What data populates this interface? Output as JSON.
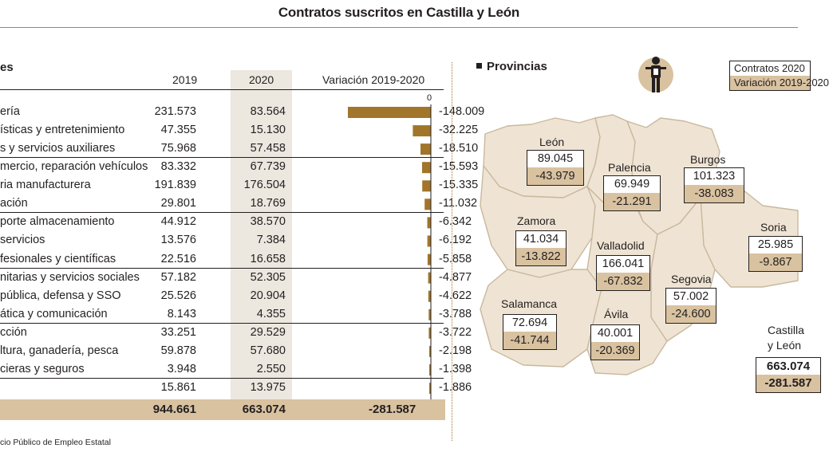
{
  "title": "Contratos suscritos en Castilla y León",
  "left_heading": "es",
  "column_headers": {
    "y2019": "2019",
    "y2020": "2020",
    "variation": "Variación 2019-2020"
  },
  "zero_label": "0",
  "chart_data": {
    "type": "bar",
    "orientation": "horizontal",
    "title": "Variación 2019-2020",
    "categories": [
      "ería",
      "ísticas y entretenimiento",
      "s y servicios auxiliares",
      "mercio, reparación vehículos",
      "ria manufacturera",
      "ación",
      "porte  almacenamiento",
      "servicios",
      "fesionales y científicas",
      "nitarias y servicios sociales",
      "pública, defensa y SSO",
      "ática y comunicación",
      "cción",
      "ltura, ganadería, pesca",
      "cieras y seguros",
      ""
    ],
    "series": [
      {
        "name": "2019",
        "values": [
          231.573,
          47.355,
          75.968,
          83.332,
          191.839,
          29.801,
          44.912,
          13.576,
          22.516,
          57.182,
          25.526,
          8.143,
          33.251,
          59.878,
          3.948,
          15.861
        ]
      },
      {
        "name": "2020",
        "values": [
          83.564,
          15.13,
          57.458,
          67.739,
          176.504,
          18.769,
          38.57,
          7.384,
          16.658,
          52.305,
          20.904,
          4.355,
          29.529,
          57.68,
          2.55,
          13.975
        ]
      },
      {
        "name": "Variación 2019-2020",
        "values": [
          -148009,
          -32225,
          -18510,
          -15593,
          -15335,
          -11032,
          -6342,
          -6192,
          -5858,
          -4877,
          -4622,
          -3788,
          -3722,
          -2198,
          -1398,
          -1886
        ]
      }
    ],
    "display": {
      "v2019": [
        "231.573",
        "47.355",
        "75.968",
        "83.332",
        "191.839",
        "29.801",
        "44.912",
        "13.576",
        "22.516",
        "57.182",
        "25.526",
        "8.143",
        "33.251",
        "59.878",
        "3.948",
        "15.861"
      ],
      "v2020": [
        "83.564",
        "15.130",
        "57.458",
        "67.739",
        "176.504",
        "18.769",
        "38.570",
        "7.384",
        "16.658",
        "52.305",
        "20.904",
        "4.355",
        "29.529",
        "57.680",
        "2.550",
        "13.975"
      ],
      "var": [
        "-148.009",
        "-32.225",
        "-18.510",
        "-15.593",
        "-15.335",
        "-11.032",
        "-6.342",
        "-6.192",
        "-5.858",
        "-4.877",
        "-4.622",
        "-3.788",
        "-3.722",
        "-2.198",
        "-1.398",
        "-1.886"
      ]
    },
    "xlim": [
      -148009,
      0
    ],
    "totals": {
      "v2019": "944.661",
      "v2020": "663.074",
      "var": "-281.587"
    }
  },
  "source": "cio Público de Empleo Estatal",
  "provinces_heading": "Provincias",
  "legend": {
    "contratos": "Contratos 2020",
    "variacion": "Variación 2019-2020"
  },
  "provinces": [
    {
      "name": "León",
      "contratos": "89.045",
      "variacion": "-43.979"
    },
    {
      "name": "Palencia",
      "contratos": "69.949",
      "variacion": "-21.291"
    },
    {
      "name": "Burgos",
      "contratos": "101.323",
      "variacion": "-38.083"
    },
    {
      "name": "Zamora",
      "contratos": "41.034",
      "variacion": "-13.822"
    },
    {
      "name": "Valladolid",
      "contratos": "166.041",
      "variacion": "-67.832"
    },
    {
      "name": "Soria",
      "contratos": "25.985",
      "variacion": "-9.867"
    },
    {
      "name": "Segovia",
      "contratos": "57.002",
      "variacion": "-24.600"
    },
    {
      "name": "Salamanca",
      "contratos": "72.694",
      "variacion": "-41.744"
    },
    {
      "name": "Ávila",
      "contratos": "40.001",
      "variacion": "-20.369"
    }
  ],
  "region": {
    "name_line1": "Castilla",
    "name_line2": "y León",
    "contratos": "663.074",
    "variacion": "-281.587"
  },
  "colors": {
    "bar": "#a1752a",
    "sand": "#d9c2a0",
    "map_fill": "#efe4d3",
    "map_border": "#c9b89e",
    "shade": "#ece7df"
  }
}
